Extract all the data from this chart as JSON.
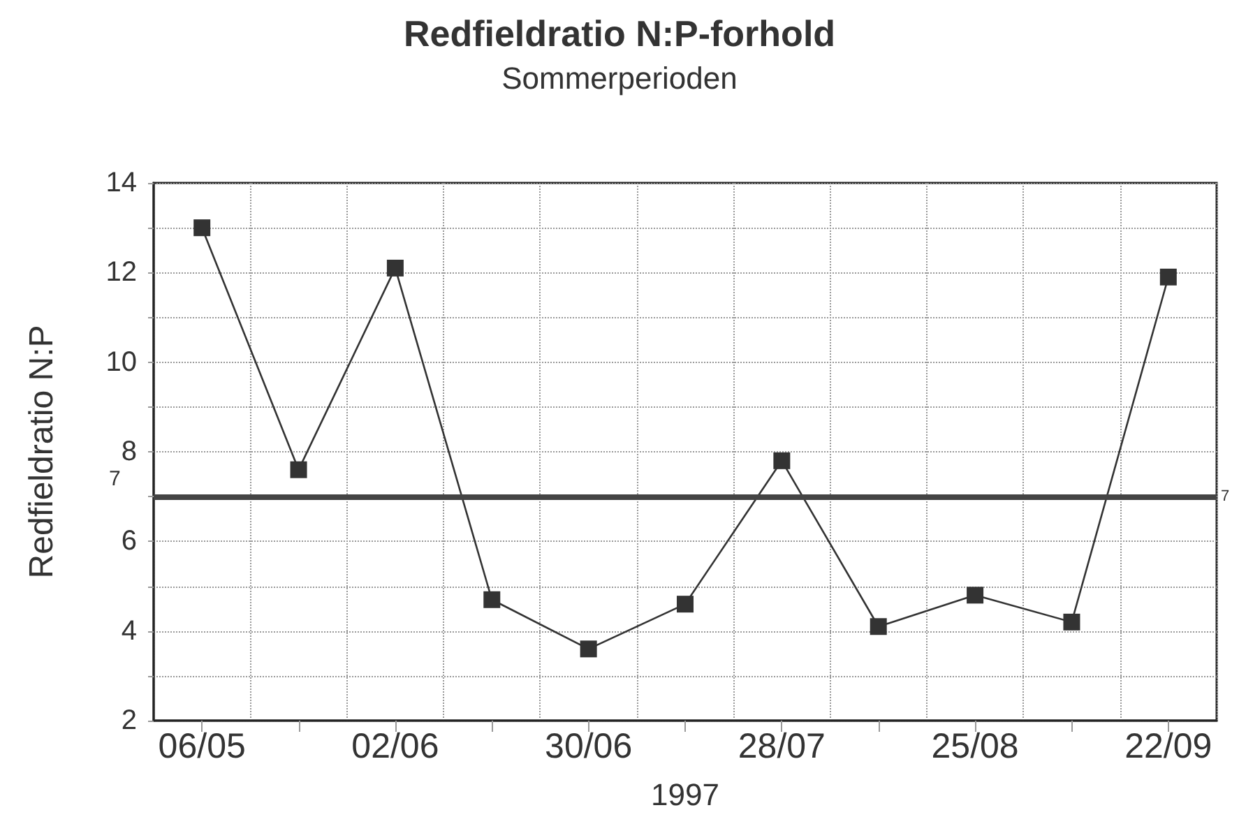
{
  "chart_data": {
    "type": "line",
    "title": "Redfieldratio N:P-forhold",
    "subtitle": "Sommerperioden",
    "xlabel": "1997",
    "ylabel": "Redfieldratio N:P",
    "categories": [
      "06/05",
      null,
      "02/06",
      null,
      "30/06",
      null,
      "28/07",
      null,
      "25/08",
      null,
      "22/09"
    ],
    "series": [
      {
        "color": "#333333",
        "values": [
          13.0,
          7.6,
          12.1,
          4.7,
          3.6,
          4.6,
          7.8,
          4.1,
          4.8,
          4.2,
          11.9
        ]
      }
    ],
    "ylim": [
      2,
      14
    ],
    "yticks": [
      2,
      {
        "value": 3,
        "label": null
      },
      4,
      {
        "value": 5,
        "label": null
      },
      6,
      {
        "value": 7,
        "label": null
      },
      8,
      {
        "value": 9,
        "label": null
      },
      10,
      {
        "value": 11,
        "label": null
      },
      12,
      {
        "value": 13,
        "label": null
      },
      14
    ],
    "ref_lines": [
      {
        "axis": "y",
        "value": 7,
        "label": "7",
        "color": "#444444"
      }
    ],
    "grid": true,
    "marker": "square",
    "line_style": "solid"
  }
}
